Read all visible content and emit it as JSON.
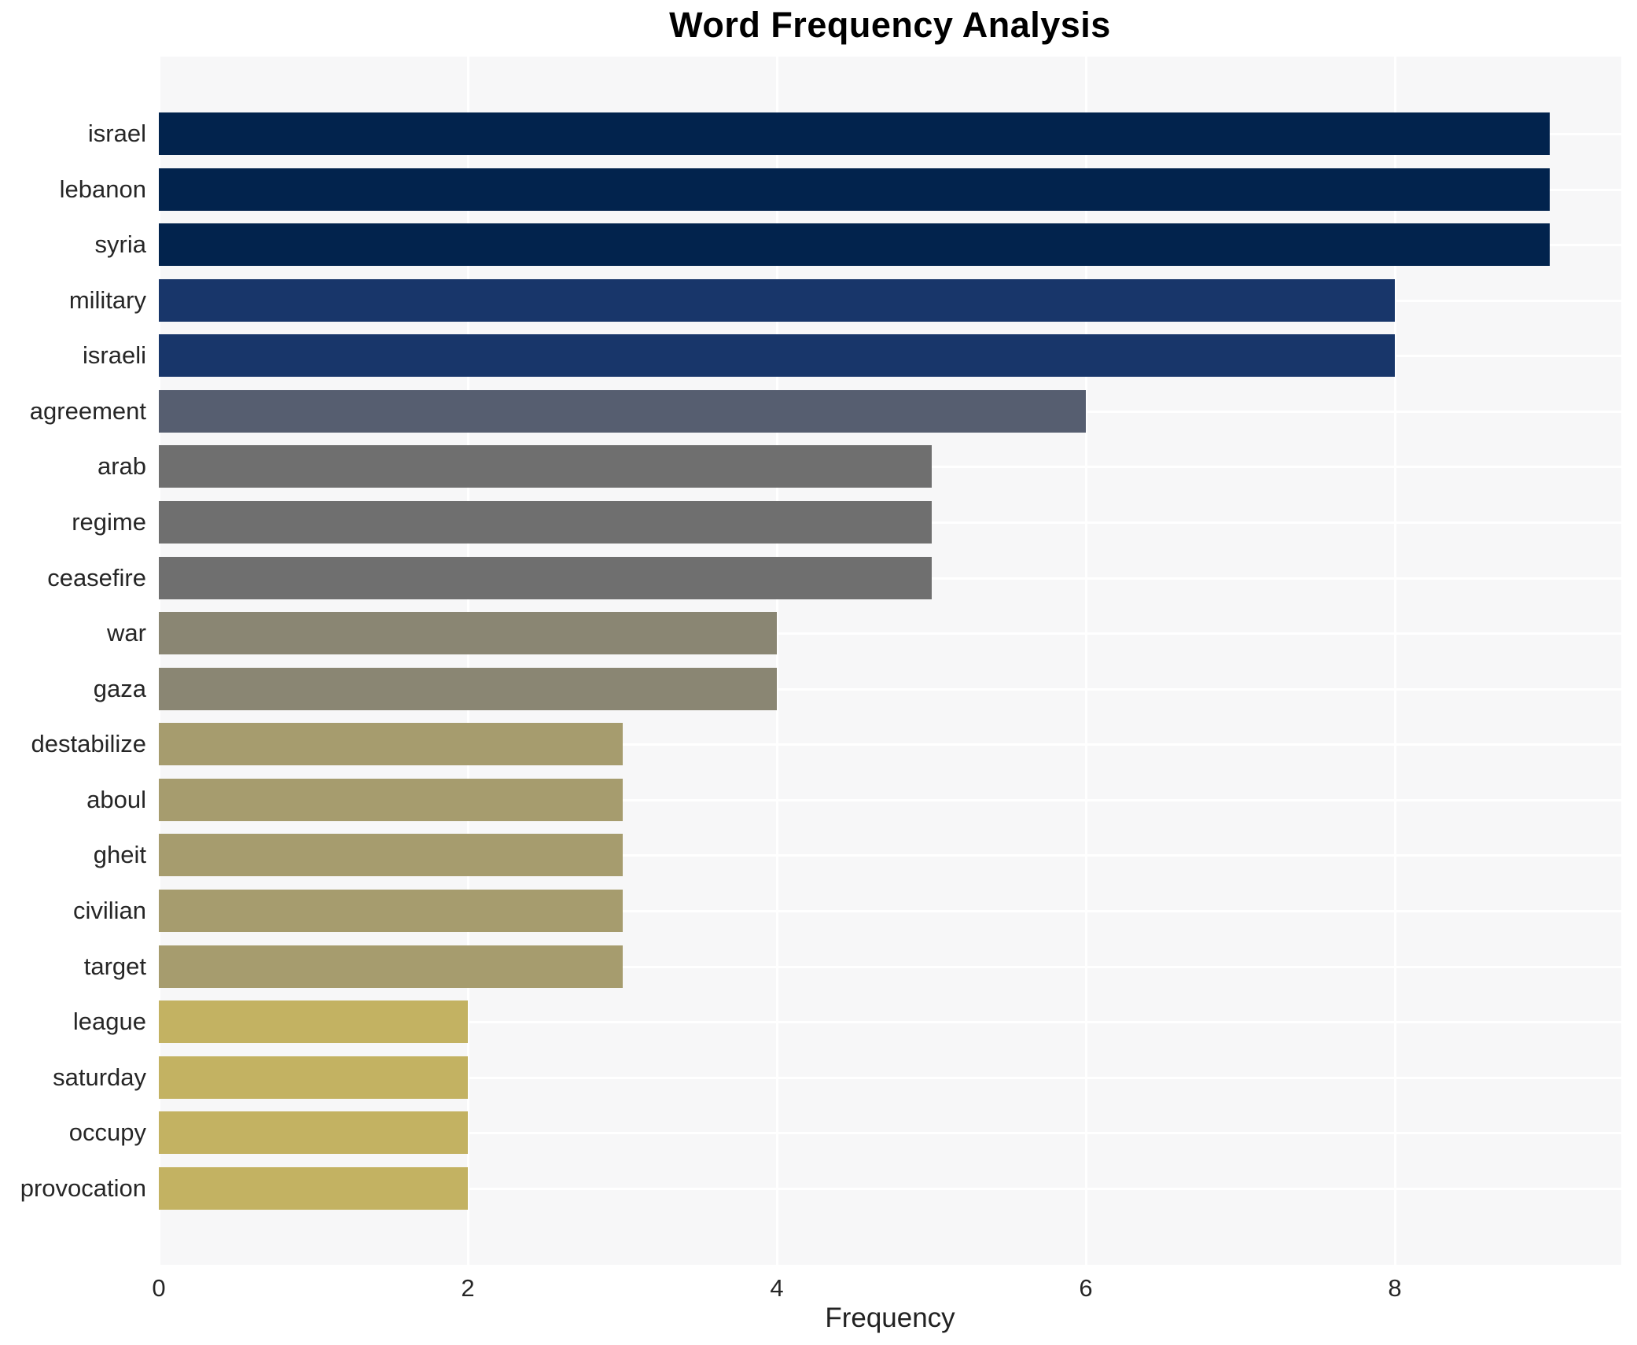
{
  "chart": {
    "title": "Word Frequency Analysis",
    "xlabel": "Frequency"
  },
  "chart_data": {
    "type": "bar",
    "orientation": "horizontal",
    "title": "Word Frequency Analysis",
    "xlabel": "Frequency",
    "ylabel": "",
    "categories": [
      "israel",
      "lebanon",
      "syria",
      "military",
      "israeli",
      "agreement",
      "arab",
      "regime",
      "ceasefire",
      "war",
      "gaza",
      "destabilize",
      "aboul",
      "gheit",
      "civilian",
      "target",
      "league",
      "saturday",
      "occupy",
      "provocation"
    ],
    "values": [
      9,
      9,
      9,
      8,
      8,
      6,
      5,
      5,
      5,
      4,
      4,
      3,
      3,
      3,
      3,
      3,
      2,
      2,
      2,
      2
    ],
    "xticks": [
      0,
      2,
      4,
      6,
      8
    ],
    "xlim": [
      0,
      9.47
    ],
    "grid": true,
    "legend": false,
    "plot_background": "#f7f7f8",
    "grid_color": "#ffffff",
    "text_color": "#262626",
    "bar_colors_by_value": {
      "9": "#02234d",
      "8": "#18366a",
      "6": "#565e70",
      "5": "#6f6f6f",
      "4": "#8a8673",
      "3": "#a69c6e",
      "2": "#c3b262"
    }
  }
}
